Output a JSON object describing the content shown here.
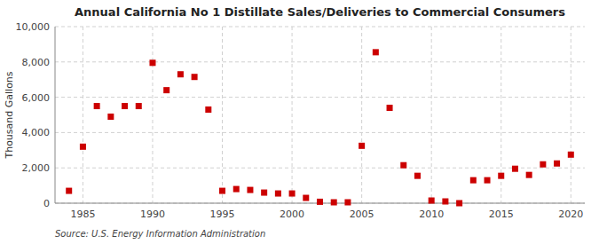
{
  "chart_data": {
    "type": "scatter",
    "title": "Annual California No 1 Distillate Sales/Deliveries to Commercial Consumers",
    "ylabel": "Thousand Gallons",
    "source": "Source: U.S. Energy Information Administration",
    "x": [
      1984,
      1985,
      1986,
      1987,
      1988,
      1989,
      1990,
      1991,
      1992,
      1993,
      1994,
      1995,
      1996,
      1997,
      1998,
      1999,
      2000,
      2001,
      2002,
      2003,
      2004,
      2005,
      2006,
      2007,
      2008,
      2009,
      2010,
      2011,
      2012,
      2013,
      2014,
      2015,
      2016,
      2017,
      2018,
      2019,
      2020
    ],
    "values": [
      700,
      3200,
      5500,
      4900,
      5500,
      5500,
      7950,
      6400,
      7300,
      7150,
      5300,
      700,
      800,
      750,
      600,
      550,
      550,
      300,
      80,
      50,
      50,
      3250,
      8550,
      5400,
      2150,
      1550,
      150,
      100,
      0,
      1300,
      1300,
      1550,
      1950,
      1600,
      2200,
      2250,
      2750
    ],
    "color": "#cc0000",
    "marker": "square",
    "xlim": [
      1983,
      2021
    ],
    "ylim": [
      0,
      10000
    ],
    "xticks": [
      1985,
      1990,
      1995,
      2000,
      2005,
      2010,
      2015,
      2020
    ],
    "yticks": [
      0,
      {
        "value": 2000,
        "label": "2,000"
      },
      {
        "value": 4000,
        "label": "4,000"
      },
      {
        "value": 6000,
        "label": "6,000"
      },
      {
        "value": 8000,
        "label": "8,000"
      },
      {
        "value": 10000,
        "label": "10,000"
      }
    ],
    "grid": true
  }
}
